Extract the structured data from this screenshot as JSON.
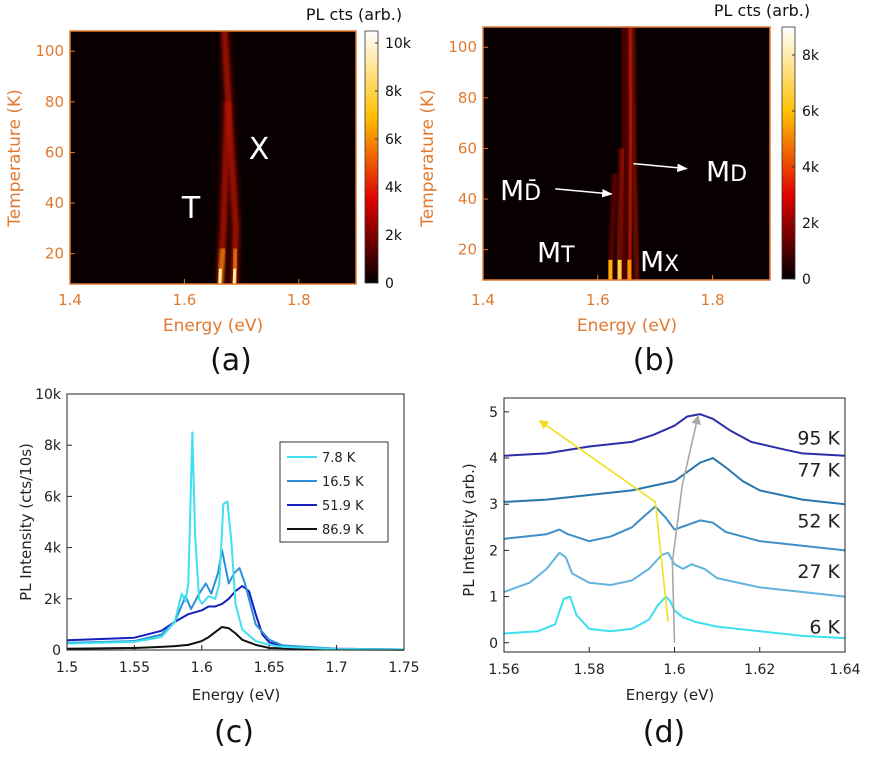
{
  "panels": {
    "a": {
      "caption": "(a)",
      "type": "heatmap",
      "xlabel": "Energy (eV)",
      "ylabel": "Temperature (K)",
      "xlim": [
        1.4,
        1.9
      ],
      "ylim": [
        8,
        108
      ],
      "xticks": [
        "1.4",
        "1.6",
        "1.8"
      ],
      "xtick_values": [
        1.4,
        1.6,
        1.8
      ],
      "yticks": [
        "20",
        "40",
        "60",
        "80",
        "100"
      ],
      "ytick_values": [
        20,
        40,
        60,
        80,
        100
      ],
      "colorbar_title": "PL cts (arb.)",
      "colorbar_ticks": [
        "0",
        "2k",
        "4k",
        "6k",
        "8k",
        "10k"
      ],
      "colorbar_values": [
        0,
        2000,
        4000,
        6000,
        8000,
        10000
      ],
      "colorbar_max": 10500,
      "annotations": [
        {
          "text": "T",
          "x": 1.6,
          "y": 41
        },
        {
          "text": "X",
          "x": 1.72,
          "y": 63
        }
      ],
      "ridges": [
        {
          "name": "T",
          "points": [
            [
              1.662,
              8
            ],
            [
              1.668,
              30
            ],
            [
              1.672,
              55
            ],
            [
              1.676,
              80
            ]
          ]
        },
        {
          "name": "X",
          "points": [
            [
              1.687,
              8
            ],
            [
              1.69,
              30
            ],
            [
              1.682,
              60
            ],
            [
              1.67,
              108
            ]
          ]
        }
      ]
    },
    "b": {
      "caption": "(b)",
      "type": "heatmap",
      "xlabel": "Energy (eV)",
      "ylabel": "Temperature (K)",
      "xlim": [
        1.4,
        1.9
      ],
      "ylim": [
        8,
        108
      ],
      "xticks": [
        "1.4",
        "1.6",
        "1.8"
      ],
      "xtick_values": [
        1.4,
        1.6,
        1.8
      ],
      "yticks": [
        "20",
        "40",
        "60",
        "80",
        "100"
      ],
      "ytick_values": [
        20,
        40,
        60,
        80,
        100
      ],
      "colorbar_title": "PL cts (arb.)",
      "colorbar_ticks": [
        "0",
        "2k",
        "4k",
        "6k",
        "8k"
      ],
      "colorbar_values": [
        0,
        2000,
        4000,
        6000,
        8000
      ],
      "colorbar_max": 9000,
      "annotations": [
        {
          "text": "MD̄",
          "label": "M",
          "sub": "D̄",
          "x": 1.44,
          "y": 44
        },
        {
          "text": "MD",
          "label": "M",
          "sub": "D",
          "x": 1.78,
          "y": 50
        },
        {
          "text": "MT",
          "label": "M",
          "sub": "T",
          "x": 1.53,
          "y": 17
        },
        {
          "text": "MX",
          "label": "M",
          "sub": "X",
          "x": 1.68,
          "y": 15
        }
      ],
      "arrows": [
        {
          "from": [
            1.526,
            44
          ],
          "to": [
            1.624,
            42
          ]
        },
        {
          "from": [
            1.662,
            54
          ],
          "to": [
            1.755,
            52
          ]
        }
      ]
    },
    "c": {
      "caption": "(c)",
      "type": "line",
      "xlabel": "Energy (eV)",
      "ylabel": "PL Intensity (cts/10s)",
      "xlim": [
        1.5,
        1.75
      ],
      "ylim": [
        0,
        10000
      ],
      "xticks": [
        "1.5",
        "1.55",
        "1.6",
        "1.65",
        "1.7",
        "1.75"
      ],
      "xtick_values": [
        1.5,
        1.55,
        1.6,
        1.65,
        1.7,
        1.75
      ],
      "yticks": [
        "0",
        "2k",
        "4k",
        "6k",
        "8k",
        "10k"
      ],
      "ytick_values": [
        0,
        2000,
        4000,
        6000,
        8000,
        10000
      ],
      "legend_position": "top-right",
      "series": [
        {
          "name": "7.8 K",
          "color": "#3ee0f0",
          "x": [
            1.5,
            1.55,
            1.57,
            1.58,
            1.585,
            1.588,
            1.59,
            1.593,
            1.595,
            1.598,
            1.6,
            1.605,
            1.61,
            1.613,
            1.616,
            1.619,
            1.622,
            1.625,
            1.63,
            1.64,
            1.65,
            1.66,
            1.7,
            1.75
          ],
          "y": [
            250,
            320,
            500,
            1100,
            2200,
            1900,
            2600,
            8500,
            4500,
            2000,
            1800,
            2100,
            2000,
            2600,
            5700,
            5800,
            4200,
            1800,
            800,
            350,
            200,
            120,
            40,
            20
          ]
        },
        {
          "name": "16.5 K",
          "color": "#2e8fd6",
          "x": [
            1.5,
            1.55,
            1.57,
            1.58,
            1.588,
            1.592,
            1.598,
            1.603,
            1.607,
            1.612,
            1.615,
            1.62,
            1.624,
            1.628,
            1.632,
            1.64,
            1.65,
            1.66,
            1.7,
            1.75
          ],
          "y": [
            280,
            350,
            600,
            1100,
            2100,
            1600,
            2200,
            2600,
            2200,
            3000,
            3900,
            2600,
            3000,
            3200,
            2600,
            1000,
            400,
            180,
            50,
            20
          ]
        },
        {
          "name": "51.9 K",
          "color": "#1420c0",
          "x": [
            1.5,
            1.55,
            1.57,
            1.58,
            1.59,
            1.6,
            1.605,
            1.61,
            1.615,
            1.62,
            1.625,
            1.63,
            1.635,
            1.64,
            1.645,
            1.65,
            1.66,
            1.7,
            1.75
          ],
          "y": [
            380,
            480,
            750,
            1100,
            1400,
            1550,
            1700,
            1700,
            1800,
            2000,
            2300,
            2500,
            2300,
            1400,
            600,
            300,
            150,
            50,
            20
          ]
        },
        {
          "name": "86.9 K",
          "color": "#111111",
          "x": [
            1.5,
            1.55,
            1.57,
            1.58,
            1.59,
            1.6,
            1.605,
            1.61,
            1.615,
            1.62,
            1.625,
            1.63,
            1.64,
            1.65,
            1.7,
            1.75
          ],
          "y": [
            50,
            80,
            120,
            150,
            200,
            350,
            500,
            700,
            900,
            850,
            650,
            400,
            200,
            80,
            20,
            10
          ]
        }
      ]
    },
    "d": {
      "caption": "(d)",
      "type": "line",
      "xlabel": "Energy (eV)",
      "ylabel": "PL Intensity (arb.)",
      "xlim": [
        1.56,
        1.64
      ],
      "ylim": [
        -0.2,
        5.3
      ],
      "xticks": [
        "1.56",
        "1.58",
        "1.6",
        "1.62",
        "1.64"
      ],
      "xtick_values": [
        1.56,
        1.58,
        1.6,
        1.62,
        1.64
      ],
      "yticks": [
        "0",
        "1",
        "2",
        "3",
        "4",
        "5"
      ],
      "ytick_values": [
        0,
        1,
        2,
        3,
        4,
        5
      ],
      "series": [
        {
          "name": "6 K",
          "color": "#3ee0f0",
          "label_y": 0.35,
          "x": [
            1.56,
            1.568,
            1.572,
            1.574,
            1.5755,
            1.577,
            1.58,
            1.585,
            1.59,
            1.594,
            1.596,
            1.598,
            1.599,
            1.6,
            1.602,
            1.605,
            1.61,
            1.62,
            1.63,
            1.64
          ],
          "y": [
            0.2,
            0.25,
            0.4,
            0.95,
            1.0,
            0.6,
            0.3,
            0.25,
            0.3,
            0.5,
            0.8,
            1.0,
            0.9,
            0.7,
            0.55,
            0.45,
            0.35,
            0.25,
            0.15,
            0.1
          ]
        },
        {
          "name": "27 K",
          "color": "#62b4df",
          "label_y": 1.55,
          "x": [
            1.56,
            1.566,
            1.57,
            1.573,
            1.5745,
            1.576,
            1.58,
            1.585,
            1.59,
            1.594,
            1.597,
            1.5985,
            1.6,
            1.602,
            1.604,
            1.607,
            1.61,
            1.62,
            1.63,
            1.64
          ],
          "y": [
            1.1,
            1.3,
            1.6,
            1.95,
            1.85,
            1.5,
            1.3,
            1.25,
            1.35,
            1.6,
            1.9,
            1.95,
            1.7,
            1.6,
            1.7,
            1.6,
            1.4,
            1.2,
            1.1,
            1.0
          ]
        },
        {
          "name": "52 K",
          "color": "#3f8fc8",
          "label_y": 2.65,
          "x": [
            1.56,
            1.565,
            1.57,
            1.573,
            1.575,
            1.58,
            1.585,
            1.59,
            1.593,
            1.5955,
            1.598,
            1.6,
            1.603,
            1.606,
            1.609,
            1.612,
            1.62,
            1.63,
            1.64
          ],
          "y": [
            2.25,
            2.3,
            2.35,
            2.45,
            2.35,
            2.2,
            2.3,
            2.5,
            2.75,
            2.95,
            2.7,
            2.45,
            2.55,
            2.65,
            2.6,
            2.4,
            2.2,
            2.1,
            2.0
          ]
        },
        {
          "name": "77 K",
          "color": "#2877ad",
          "label_y": 3.75,
          "x": [
            1.56,
            1.57,
            1.58,
            1.59,
            1.595,
            1.6,
            1.603,
            1.606,
            1.609,
            1.612,
            1.616,
            1.62,
            1.63,
            1.64
          ],
          "y": [
            3.05,
            3.1,
            3.2,
            3.3,
            3.4,
            3.5,
            3.7,
            3.9,
            4.0,
            3.8,
            3.5,
            3.3,
            3.1,
            3.0
          ]
        },
        {
          "name": "95 K",
          "color": "#2a2fa8",
          "label_y": 4.45,
          "x": [
            1.56,
            1.57,
            1.58,
            1.59,
            1.595,
            1.6,
            1.603,
            1.606,
            1.609,
            1.613,
            1.618,
            1.625,
            1.63,
            1.64
          ],
          "y": [
            4.05,
            4.1,
            4.25,
            4.35,
            4.5,
            4.7,
            4.9,
            4.95,
            4.85,
            4.6,
            4.35,
            4.2,
            4.1,
            4.05
          ]
        }
      ],
      "arrows": [
        {
          "color": "#f0e020",
          "points": [
            [
              1.5985,
              0.45
            ],
            [
              1.5955,
              3.05
            ],
            [
              1.5685,
              4.8
            ]
          ]
        },
        {
          "color": "#a8a8a8",
          "points": [
            [
              1.6,
              0.0
            ],
            [
              1.5995,
              1.75
            ],
            [
              1.6018,
              3.4
            ],
            [
              1.6055,
              4.9
            ]
          ]
        }
      ]
    }
  }
}
